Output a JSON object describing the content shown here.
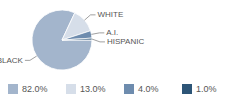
{
  "chart_data": {
    "type": "pie",
    "categories": [
      "BLACK",
      "WHITE",
      "A.I.",
      "HISPANIC"
    ],
    "values": [
      82,
      13,
      4,
      1
    ],
    "value_labels": [
      "82.0%",
      "13.0%",
      "4.0%",
      "1.0%"
    ],
    "colors": [
      "#a3b5cc",
      "#d6dee9",
      "#6e8cae",
      "#2d5577"
    ],
    "legend": "bottom"
  }
}
